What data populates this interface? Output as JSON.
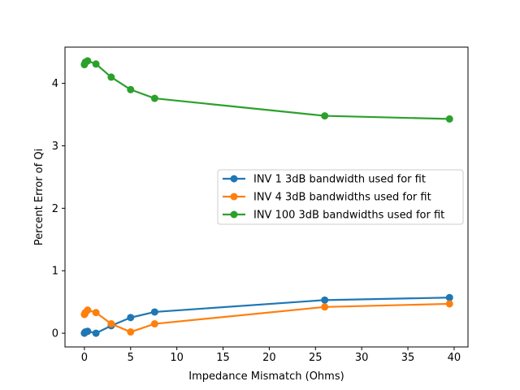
{
  "chart_data": {
    "type": "line",
    "title": "",
    "xlabel": "Impedance Mismatch (Ohms)",
    "ylabel": "Percent Error of Qi",
    "xlim": [
      -2.1,
      41.5
    ],
    "ylim": [
      -0.22,
      4.58
    ],
    "xticks": [
      0,
      5,
      10,
      15,
      20,
      25,
      30,
      35,
      40
    ],
    "yticks": [
      0,
      1,
      2,
      3,
      4
    ],
    "grid": false,
    "legend_position": "center-right",
    "series": [
      {
        "name": "INV 1 3dB bandwidth used for fit",
        "color": "#1f77b4",
        "x": [
          0.0,
          0.05,
          0.1,
          0.35,
          1.25,
          2.9,
          5.0,
          7.6,
          26.0,
          39.5
        ],
        "y": [
          0.0,
          0.01,
          0.02,
          0.03,
          0.0,
          0.12,
          0.25,
          0.34,
          0.53,
          0.57
        ]
      },
      {
        "name": "INV 4 3dB bandwidths used for fit",
        "color": "#ff7f0e",
        "x": [
          0.0,
          0.05,
          0.1,
          0.35,
          1.25,
          2.9,
          5.0,
          7.6,
          26.0,
          39.5
        ],
        "y": [
          0.3,
          0.31,
          0.33,
          0.37,
          0.33,
          0.15,
          0.02,
          0.15,
          0.42,
          0.47
        ]
      },
      {
        "name": "INV 100 3dB bandwidths used for fit",
        "color": "#2ca02c",
        "x": [
          0.0,
          0.05,
          0.1,
          0.35,
          1.25,
          2.9,
          5.0,
          7.6,
          26.0,
          39.5
        ],
        "y": [
          4.3,
          4.32,
          4.34,
          4.36,
          4.31,
          4.1,
          3.9,
          3.76,
          3.48,
          3.43
        ]
      }
    ]
  }
}
